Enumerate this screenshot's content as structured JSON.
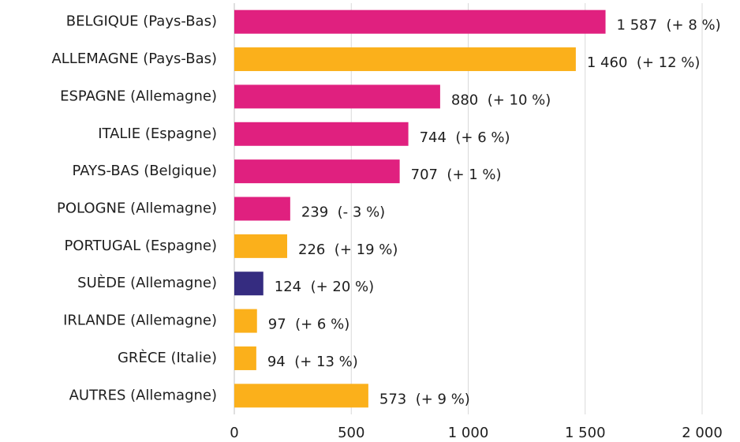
{
  "chart_data": {
    "type": "bar",
    "orientation": "horizontal",
    "categories": [
      "BELGIQUE (Pays-Bas)",
      "ALLEMAGNE (Pays-Bas)",
      "ESPAGNE (Allemagne)",
      "ITALIE (Espagne)",
      "PAYS-BAS (Belgique)",
      "POLOGNE (Allemagne)",
      "PORTUGAL (Espagne)",
      "SUÈDE (Allemagne)",
      "IRLANDE (Allemagne)",
      "GRÈCE (Italie)",
      "AUTRES (Allemagne)"
    ],
    "values": [
      1587,
      1460,
      880,
      744,
      707,
      239,
      226,
      124,
      97,
      94,
      573
    ],
    "value_labels": [
      "1 587  (+ 8 %)",
      "1 460  (+ 12 %)",
      "880  (+ 10 %)",
      "744  (+ 6 %)",
      "707  (+ 1 %)",
      "239  (- 3 %)",
      "226  (+ 19 %)",
      "124  (+ 20 %)",
      "97  (+ 6 %)",
      "94  (+ 13 %)",
      "573  (+ 9 %)"
    ],
    "colors": [
      "#e0207f",
      "#fbb01b",
      "#e0207f",
      "#e0207f",
      "#e0207f",
      "#e0207f",
      "#fbb01b",
      "#352c80",
      "#fbb01b",
      "#fbb01b",
      "#fbb01b"
    ],
    "xlim": [
      0,
      2000
    ],
    "xticks": [
      0,
      500,
      {
        "value": 1000,
        "label": "1 000"
      },
      {
        "value": 1500,
        "label": "1 500"
      },
      {
        "value": 2000,
        "label": "2 000"
      }
    ],
    "grid": true
  }
}
